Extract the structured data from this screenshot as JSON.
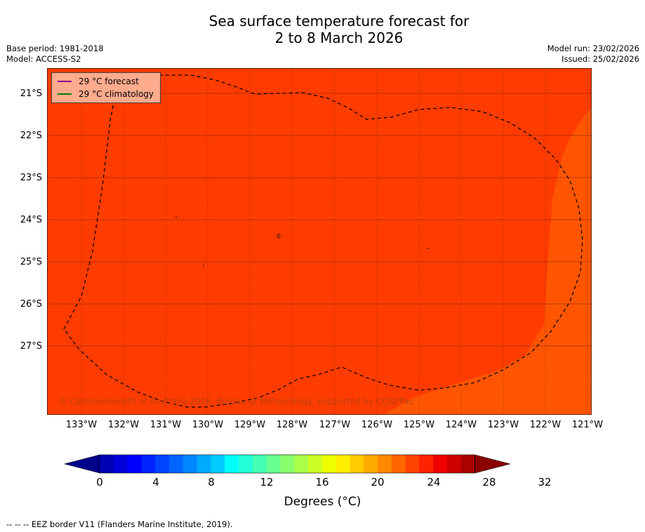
{
  "title_line1": "Sea surface temperature forecast for",
  "title_line2": "2 to 8 March 2026",
  "base_period": "Base period: 1981-2018",
  "model": "Model: ACCESS-S2",
  "model_run": "Model run: 23/02/2026",
  "issued": "Issued: 25/02/2026",
  "lat_labels": [
    "21°S",
    "22°S",
    "23°S",
    "24°S",
    "25°S",
    "26°S",
    "27°S"
  ],
  "lon_labels": [
    "133°W",
    "132°W",
    "131°W",
    "130°W",
    "129°W",
    "128°W",
    "127°W",
    "126°W",
    "125°W",
    "124°W",
    "123°W",
    "122°W",
    "121°W"
  ],
  "legend": {
    "forecast": "29 °C  forecast",
    "climatology": "29 °C  climatology",
    "forecast_color": "#8b008b",
    "climatology_color": "#008000"
  },
  "copyright": "© Commonwealth of Australia 2026, Bureau of Meteorology, supported by COSPPac",
  "colorbar": {
    "ticks": [
      "0",
      "4",
      "8",
      "12",
      "16",
      "20",
      "24",
      "28",
      "32"
    ],
    "label": "Degrees (°C)",
    "colors": [
      "#00008b",
      "#0000b4",
      "#0000d8",
      "#0000ff",
      "#0022ff",
      "#0044ff",
      "#0066ff",
      "#0088ff",
      "#00aaff",
      "#00ccff",
      "#00ffff",
      "#22ffd8",
      "#44ffb4",
      "#66ff90",
      "#88ff6c",
      "#aaff48",
      "#ccff24",
      "#eeff00",
      "#ffee00",
      "#ffcc00",
      "#ffaa00",
      "#ff8800",
      "#ff6600",
      "#ff4400",
      "#ff2200",
      "#ee0000",
      "#cc0000",
      "#aa0000",
      "#8b0000"
    ]
  },
  "map_colors": {
    "main": "#ff3c00",
    "east": "#ff5500"
  },
  "footnote": "--  --  -- EEZ border V11 (Flanders Marine Institute, 2019)."
}
